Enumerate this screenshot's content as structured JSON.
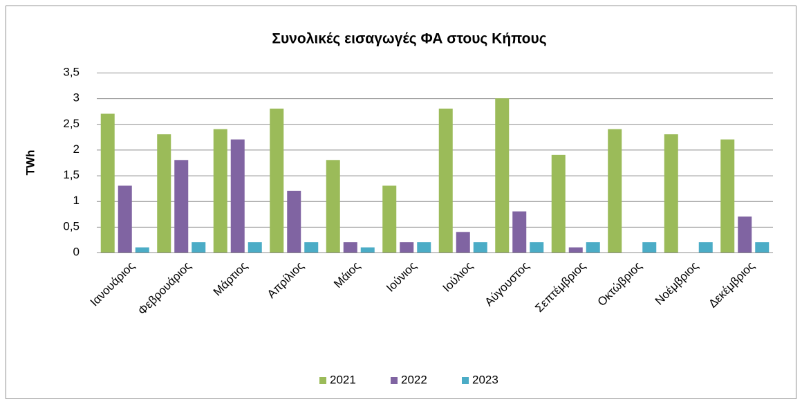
{
  "chart_data": {
    "type": "bar",
    "title": "Συνολικές εισαγωγές ΦΑ στους Κήπους",
    "y_label": "TWh",
    "categories": [
      "Ιανουάριος",
      "Φεβρουάριος",
      "Μάρτιος",
      "Απρίλιος",
      "Μάιος",
      "Ιούνιος",
      "Ιούλιος",
      "Αύγουστος",
      "Σεπτέμβριος",
      "Οκτώβριος",
      "Νοέμβριος",
      "Δεκέμβριος"
    ],
    "series": [
      {
        "name": "2021",
        "color": "#9bbb59",
        "values": [
          2.7,
          2.3,
          2.4,
          2.8,
          1.8,
          1.3,
          2.8,
          3.0,
          1.9,
          2.4,
          2.3,
          2.2
        ]
      },
      {
        "name": "2022",
        "color": "#8064a2",
        "values": [
          1.3,
          1.8,
          2.2,
          1.2,
          0.2,
          0.2,
          0.4,
          0.8,
          0.1,
          0,
          0,
          0.7
        ]
      },
      {
        "name": "2023",
        "color": "#4bacc6",
        "values": [
          0.1,
          0.2,
          0.2,
          0.2,
          0.1,
          0.2,
          0.2,
          0.2,
          0.2,
          0.2,
          0.2,
          0.2
        ]
      }
    ],
    "ylim": [
      0,
      3.5
    ],
    "yticks": [
      0,
      {
        "value": 0.5,
        "label": "0,5"
      },
      1,
      {
        "value": 1.5,
        "label": "1,5"
      },
      2,
      {
        "value": 2.5,
        "label": "2,5"
      },
      3,
      {
        "value": 3.5,
        "label": "3,5"
      }
    ],
    "grid": true,
    "legend": "bottom"
  }
}
